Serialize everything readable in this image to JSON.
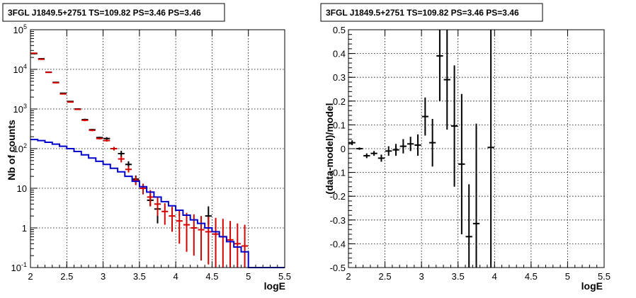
{
  "chart_data": [
    {
      "type": "scatter",
      "title": "3FGL J1849.5+2751 TS=109.82 PS=3.46 PS=3.46",
      "xlabel": "logE",
      "ylabel": "Nb of counts",
      "xlim": [
        2,
        5.5
      ],
      "ylim": [
        0.1,
        100000
      ],
      "yscale": "log",
      "grid": true,
      "x_ticks": [
        "2",
        "2.5",
        "3",
        "3.5",
        "4",
        "4.5",
        "5",
        "5.5"
      ],
      "y_ticks": [
        {
          "base": "10",
          "exp": "-1",
          "plain": "10-1",
          "value": 0.1
        },
        {
          "base": "1",
          "exp": "",
          "plain": "1",
          "value": 1
        },
        {
          "base": "10",
          "exp": "",
          "plain": "10",
          "value": 10
        },
        {
          "base": "10",
          "exp": "2",
          "plain": "102",
          "value": 100
        },
        {
          "base": "10",
          "exp": "3",
          "plain": "103",
          "value": 1000
        },
        {
          "base": "10",
          "exp": "4",
          "plain": "104",
          "value": 10000
        },
        {
          "base": "10",
          "exp": "5",
          "plain": "105",
          "value": 100000
        }
      ],
      "series": [
        {
          "color": "#000000",
          "kind": "errorbar",
          "x": [
            2.05,
            2.15,
            2.25,
            2.35,
            2.45,
            2.55,
            2.65,
            2.75,
            2.85,
            2.95,
            3.05,
            3.15,
            3.25,
            3.35,
            3.45,
            3.55,
            3.65,
            3.75,
            4.45
          ],
          "y": [
            25000,
            18500,
            8500,
            4700,
            2500,
            1550,
            1000,
            540,
            300,
            190,
            180,
            100,
            75,
            40,
            17,
            10,
            5,
            3,
            2
          ],
          "ylo": [
            24000,
            18000,
            8300,
            4600,
            2450,
            1500,
            960,
            510,
            285,
            180,
            165,
            90,
            62,
            33,
            14,
            8,
            3.5,
            1.3,
            1.2
          ],
          "yhi": [
            26000,
            19000,
            8700,
            4800,
            2550,
            1600,
            1040,
            570,
            315,
            200,
            195,
            110,
            88,
            48,
            21,
            13,
            7,
            5,
            3.5
          ]
        },
        {
          "color": "#d40000",
          "kind": "errorbar",
          "x": [
            2.05,
            2.15,
            2.25,
            2.35,
            2.45,
            2.55,
            2.65,
            2.75,
            2.85,
            2.95,
            3.05,
            3.15,
            3.25,
            3.35,
            3.45,
            3.55,
            3.65,
            3.75,
            3.85,
            3.95,
            4.05,
            4.15,
            4.25,
            4.35,
            4.45,
            4.55,
            4.65,
            4.75,
            4.85,
            4.95
          ],
          "y": [
            25500,
            18000,
            8400,
            4600,
            2400,
            1500,
            980,
            520,
            290,
            180,
            160,
            100,
            55,
            30,
            16,
            10,
            6,
            4,
            2.6,
            2,
            1.5,
            1.2,
            1,
            0.9,
            0.8,
            0.7,
            0.6,
            0.5,
            0.4,
            0.35
          ],
          "ylo": [
            25000,
            17500,
            8200,
            4500,
            2350,
            1450,
            940,
            490,
            275,
            170,
            150,
            90,
            45,
            25,
            12,
            7,
            3.5,
            2,
            1.2,
            0.8,
            0.4,
            0.25,
            0.2,
            0.15,
            0.12,
            0.1,
            0.1,
            0.1,
            0.1,
            0.1
          ],
          "yhi": [
            26000,
            18500,
            8600,
            4700,
            2450,
            1550,
            1020,
            550,
            305,
            190,
            170,
            110,
            65,
            36,
            20,
            13,
            9,
            6,
            4.2,
            3.4,
            2.8,
            2.4,
            2.2,
            2,
            1.9,
            1.8,
            1.7,
            1.5,
            1.3,
            1.2
          ]
        },
        {
          "color": "#0000cc",
          "kind": "step",
          "edges": [
            2.0,
            2.1,
            2.2,
            2.3,
            2.4,
            2.5,
            2.6,
            2.7,
            2.8,
            2.9,
            3.0,
            3.1,
            3.2,
            3.3,
            3.4,
            3.5,
            3.6,
            3.7,
            3.8,
            3.9,
            4.0,
            4.1,
            4.2,
            4.3,
            4.4,
            4.5,
            4.6,
            4.7,
            4.8,
            4.9,
            5.0,
            5.1,
            5.2,
            5.3,
            5.4,
            5.5
          ],
          "values": [
            170,
            160,
            145,
            130,
            115,
            100,
            85,
            70,
            58,
            48,
            40,
            32,
            26,
            20,
            15,
            11,
            8,
            6,
            4.6,
            3.6,
            2.8,
            2.1,
            1.6,
            1.3,
            1.0,
            0.8,
            0.6,
            0.45,
            0.33,
            0.25,
            0.1,
            0.1,
            0.1,
            0.1,
            0.1
          ]
        }
      ]
    },
    {
      "type": "scatter",
      "title": "3FGL J1849.5+2751 TS=109.82 PS=3.46 PS=3.46",
      "xlabel": "logE",
      "ylabel": "(data-model)/model",
      "xlim": [
        2,
        5.5
      ],
      "ylim": [
        -0.5,
        0.5
      ],
      "grid": true,
      "x_ticks": [
        "2",
        "2.5",
        "3",
        "3.5",
        "4",
        "4.5",
        "5",
        "5.5"
      ],
      "y_ticks": [
        "-0.5",
        "-0.4",
        "-0.3",
        "-0.2",
        "-0.1",
        "0",
        "0.1",
        "0.2",
        "0.3",
        "0.4",
        "0.5"
      ],
      "series": [
        {
          "color": "#000000",
          "kind": "errorbar",
          "x": [
            2.05,
            2.15,
            2.25,
            2.35,
            2.45,
            2.55,
            2.65,
            2.75,
            2.85,
            2.95,
            3.05,
            3.15,
            3.25,
            3.35,
            3.45,
            3.55,
            3.65,
            3.75,
            3.95
          ],
          "y": [
            0.025,
            0.0,
            -0.03,
            -0.02,
            -0.04,
            -0.01,
            -0.005,
            0.01,
            0.02,
            0.015,
            0.135,
            0.025,
            0.39,
            0.29,
            0.095,
            -0.065,
            -0.37,
            -0.315,
            0.005
          ],
          "ylo": [
            0.015,
            -0.005,
            -0.04,
            -0.03,
            -0.055,
            -0.03,
            -0.03,
            -0.02,
            -0.01,
            -0.03,
            0.055,
            -0.075,
            0.2,
            0.08,
            -0.16,
            -0.36,
            -0.6,
            -0.6,
            -0.6
          ],
          "yhi": [
            0.035,
            0.005,
            -0.02,
            -0.01,
            -0.025,
            0.01,
            0.02,
            0.04,
            0.05,
            0.06,
            0.215,
            0.125,
            0.6,
            0.5,
            0.35,
            0.23,
            -0.15,
            0.105,
            0.6
          ]
        }
      ]
    }
  ]
}
